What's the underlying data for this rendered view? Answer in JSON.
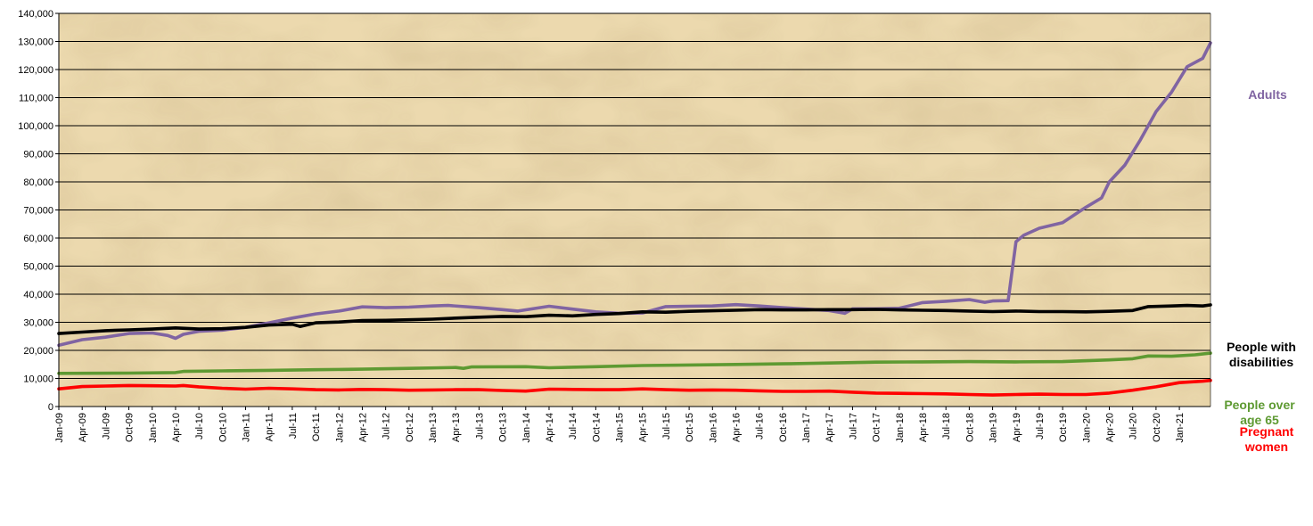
{
  "chart_data": {
    "type": "line",
    "title": "",
    "xlabel": "",
    "ylabel": "",
    "ylim": [
      0,
      140000
    ],
    "yticks": [
      0,
      10000,
      20000,
      30000,
      40000,
      50000,
      60000,
      70000,
      80000,
      90000,
      100000,
      110000,
      120000,
      130000,
      140000
    ],
    "ytick_labels": [
      "0",
      "10,000",
      "20,000",
      "30,000",
      "40,000",
      "50,000",
      "60,000",
      "70,000",
      "80,000",
      "90,000",
      "100,000",
      "110,000",
      "120,000",
      "130,000",
      "140,000"
    ],
    "x_start": "Jan-09",
    "x_end": "May-21",
    "x_tick_labels": [
      "Jan-09",
      "Apr-09",
      "Jul-09",
      "Oct-09",
      "Jan-10",
      "Apr-10",
      "Jul-10",
      "Oct-10",
      "Jan-11",
      "Apr-11",
      "Jul-11",
      "Oct-11",
      "Jan-12",
      "Apr-12",
      "Jul-12",
      "Oct-12",
      "Jan-13",
      "Apr-13",
      "Jul-13",
      "Oct-13",
      "Jan-14",
      "Apr-14",
      "Jul-14",
      "Oct-14",
      "Jan-15",
      "Apr-15",
      "Jul-15",
      "Oct-15",
      "Jan-16",
      "Apr-16",
      "Jul-16",
      "Oct-16",
      "Jan-17",
      "Apr-17",
      "Jul-17",
      "Oct-17",
      "Jan-18",
      "Apr-18",
      "Jul-18",
      "Oct-18",
      "Jan-19",
      "Apr-19",
      "Jul-19",
      "Oct-19",
      "Jan-20",
      "Apr-20",
      "Jul-20",
      "Oct-20",
      "Jan-21"
    ],
    "grid": true,
    "legend": "right-end labels",
    "series": [
      {
        "name": "Adults",
        "label_lines": [
          "Adults"
        ],
        "color": "#8064a2",
        "points": [
          [
            "Jan-09",
            21800
          ],
          [
            "Apr-09",
            23800
          ],
          [
            "Jul-09",
            24700
          ],
          [
            "Oct-09",
            26000
          ],
          [
            "Jan-10",
            26200
          ],
          [
            "Mar-10",
            25300
          ],
          [
            "Apr-10",
            24300
          ],
          [
            "May-10",
            25700
          ],
          [
            "Jul-10",
            26800
          ],
          [
            "Oct-10",
            27200
          ],
          [
            "Jan-11",
            28200
          ],
          [
            "Apr-11",
            29800
          ],
          [
            "Jul-11",
            31500
          ],
          [
            "Oct-11",
            33000
          ],
          [
            "Jan-12",
            34000
          ],
          [
            "Apr-12",
            35500
          ],
          [
            "Jul-12",
            35200
          ],
          [
            "Oct-12",
            35400
          ],
          [
            "Jan-13",
            35800
          ],
          [
            "Mar-13",
            36000
          ],
          [
            "Jul-13",
            35200
          ],
          [
            "Oct-13",
            34500
          ],
          [
            "Dec-13",
            34000
          ],
          [
            "Apr-14",
            35700
          ],
          [
            "Jul-14",
            34700
          ],
          [
            "Oct-14",
            33700
          ],
          [
            "Jan-15",
            33200
          ],
          [
            "Apr-15",
            33300
          ],
          [
            "Jul-15",
            35600
          ],
          [
            "Oct-15",
            35700
          ],
          [
            "Jan-16",
            35800
          ],
          [
            "Apr-16",
            36300
          ],
          [
            "Jul-16",
            35800
          ],
          [
            "Oct-16",
            35200
          ],
          [
            "Jan-17",
            34700
          ],
          [
            "Apr-17",
            34200
          ],
          [
            "Jun-17",
            33200
          ],
          [
            "Jul-17",
            34800
          ],
          [
            "Oct-17",
            34800
          ],
          [
            "Jan-18",
            35000
          ],
          [
            "Apr-18",
            37000
          ],
          [
            "Jul-18",
            37500
          ],
          [
            "Oct-18",
            38100
          ],
          [
            "Dec-18",
            37100
          ],
          [
            "Jan-19",
            37600
          ],
          [
            "Mar-19",
            37700
          ],
          [
            "Apr-19",
            58700
          ],
          [
            "May-19",
            61000
          ],
          [
            "Jul-19",
            63500
          ],
          [
            "Oct-19",
            65500
          ],
          [
            "Jan-20",
            71000
          ],
          [
            "Mar-20",
            74300
          ],
          [
            "Apr-20",
            80000
          ],
          [
            "Jun-20",
            86000
          ],
          [
            "Aug-20",
            95000
          ],
          [
            "Oct-20",
            105000
          ],
          [
            "Dec-20",
            112000
          ],
          [
            "Feb-21",
            121000
          ],
          [
            "Apr-21",
            124000
          ],
          [
            "May-21",
            129500
          ]
        ]
      },
      {
        "name": "People with disabilities",
        "label_lines": [
          "People with",
          "disabilities"
        ],
        "color": "#000000",
        "points": [
          [
            "Jan-09",
            26000
          ],
          [
            "Apr-09",
            26500
          ],
          [
            "Jul-09",
            27000
          ],
          [
            "Oct-09",
            27300
          ],
          [
            "Jan-10",
            27600
          ],
          [
            "Apr-10",
            28000
          ],
          [
            "Jul-10",
            27600
          ],
          [
            "Oct-10",
            27700
          ],
          [
            "Jan-11",
            28200
          ],
          [
            "Apr-11",
            29000
          ],
          [
            "Jul-11",
            29300
          ],
          [
            "Aug-11",
            28500
          ],
          [
            "Oct-11",
            29800
          ],
          [
            "Jan-12",
            30100
          ],
          [
            "Apr-12",
            30600
          ],
          [
            "Jul-12",
            30700
          ],
          [
            "Oct-12",
            30900
          ],
          [
            "Jan-13",
            31100
          ],
          [
            "Apr-13",
            31500
          ],
          [
            "Jul-13",
            31800
          ],
          [
            "Oct-13",
            32100
          ],
          [
            "Jan-14",
            32000
          ],
          [
            "Apr-14",
            32500
          ],
          [
            "Jul-14",
            32300
          ],
          [
            "Oct-14",
            32800
          ],
          [
            "Jan-15",
            33100
          ],
          [
            "Apr-15",
            33700
          ],
          [
            "Jul-15",
            33600
          ],
          [
            "Oct-15",
            33900
          ],
          [
            "Jan-16",
            34100
          ],
          [
            "Apr-16",
            34300
          ],
          [
            "Jul-16",
            34500
          ],
          [
            "Oct-16",
            34400
          ],
          [
            "Jan-17",
            34400
          ],
          [
            "Apr-17",
            34500
          ],
          [
            "Jul-17",
            34500
          ],
          [
            "Oct-17",
            34600
          ],
          [
            "Jan-18",
            34400
          ],
          [
            "Apr-18",
            34300
          ],
          [
            "Jul-18",
            34200
          ],
          [
            "Oct-18",
            34000
          ],
          [
            "Jan-19",
            33800
          ],
          [
            "Apr-19",
            34000
          ],
          [
            "Jul-19",
            33800
          ],
          [
            "Oct-19",
            33800
          ],
          [
            "Jan-20",
            33700
          ],
          [
            "Apr-20",
            33900
          ],
          [
            "Jul-20",
            34200
          ],
          [
            "Sep-20",
            35600
          ],
          [
            "Dec-20",
            35800
          ],
          [
            "Feb-21",
            36000
          ],
          [
            "Apr-21",
            35800
          ],
          [
            "May-21",
            36200
          ]
        ]
      },
      {
        "name": "People over age 65",
        "label_lines": [
          "People over",
          "age 65"
        ],
        "color": "#5e9a32",
        "points": [
          [
            "Jan-09",
            11800
          ],
          [
            "Oct-09",
            11900
          ],
          [
            "Apr-10",
            12100
          ],
          [
            "May-10",
            12500
          ],
          [
            "Oct-10",
            12700
          ],
          [
            "Apr-11",
            12900
          ],
          [
            "Oct-11",
            13100
          ],
          [
            "Apr-12",
            13300
          ],
          [
            "Oct-12",
            13600
          ],
          [
            "Apr-13",
            13900
          ],
          [
            "May-13",
            13600
          ],
          [
            "Jun-13",
            14100
          ],
          [
            "Jan-14",
            14200
          ],
          [
            "Apr-14",
            13800
          ],
          [
            "Oct-14",
            14200
          ],
          [
            "Apr-15",
            14600
          ],
          [
            "Oct-15",
            14800
          ],
          [
            "Apr-16",
            15000
          ],
          [
            "Oct-16",
            15200
          ],
          [
            "Apr-17",
            15500
          ],
          [
            "Oct-17",
            15800
          ],
          [
            "Apr-18",
            15900
          ],
          [
            "Oct-18",
            16000
          ],
          [
            "Apr-19",
            15900
          ],
          [
            "Oct-19",
            16000
          ],
          [
            "Apr-20",
            16600
          ],
          [
            "Jul-20",
            17000
          ],
          [
            "Sep-20",
            18000
          ],
          [
            "Dec-20",
            17900
          ],
          [
            "Mar-21",
            18400
          ],
          [
            "May-21",
            19000
          ]
        ]
      },
      {
        "name": "Pregnant women",
        "label_lines": [
          "Pregnant",
          "women"
        ],
        "color": "#ff0000",
        "points": [
          [
            "Jan-09",
            6300
          ],
          [
            "Apr-09",
            7100
          ],
          [
            "Jul-09",
            7300
          ],
          [
            "Oct-09",
            7500
          ],
          [
            "Jan-10",
            7400
          ],
          [
            "Apr-10",
            7300
          ],
          [
            "May-10",
            7500
          ],
          [
            "Jul-10",
            7000
          ],
          [
            "Oct-10",
            6500
          ],
          [
            "Jan-11",
            6200
          ],
          [
            "Apr-11",
            6500
          ],
          [
            "Jul-11",
            6300
          ],
          [
            "Oct-11",
            6000
          ],
          [
            "Jan-12",
            5900
          ],
          [
            "Apr-12",
            6100
          ],
          [
            "Jul-12",
            6000
          ],
          [
            "Oct-12",
            5800
          ],
          [
            "Jan-13",
            5900
          ],
          [
            "Apr-13",
            6000
          ],
          [
            "Jul-13",
            6000
          ],
          [
            "Oct-13",
            5700
          ],
          [
            "Jan-14",
            5500
          ],
          [
            "Apr-14",
            6200
          ],
          [
            "Jul-14",
            6100
          ],
          [
            "Oct-14",
            6000
          ],
          [
            "Jan-15",
            6000
          ],
          [
            "Apr-15",
            6300
          ],
          [
            "Jul-15",
            6000
          ],
          [
            "Oct-15",
            5800
          ],
          [
            "Jan-16",
            5900
          ],
          [
            "Apr-16",
            5800
          ],
          [
            "Jul-16",
            5600
          ],
          [
            "Oct-16",
            5400
          ],
          [
            "Jan-17",
            5400
          ],
          [
            "Apr-17",
            5500
          ],
          [
            "Jul-17",
            5100
          ],
          [
            "Oct-17",
            4800
          ],
          [
            "Jan-18",
            4700
          ],
          [
            "Apr-18",
            4600
          ],
          [
            "Jul-18",
            4500
          ],
          [
            "Oct-18",
            4300
          ],
          [
            "Jan-19",
            4100
          ],
          [
            "Apr-19",
            4300
          ],
          [
            "Jul-19",
            4400
          ],
          [
            "Oct-19",
            4300
          ],
          [
            "Jan-20",
            4300
          ],
          [
            "Apr-20",
            4800
          ],
          [
            "Jul-20",
            5800
          ],
          [
            "Oct-20",
            7000
          ],
          [
            "Jan-21",
            8500
          ],
          [
            "Apr-21",
            9000
          ],
          [
            "May-21",
            9300
          ]
        ]
      }
    ]
  }
}
